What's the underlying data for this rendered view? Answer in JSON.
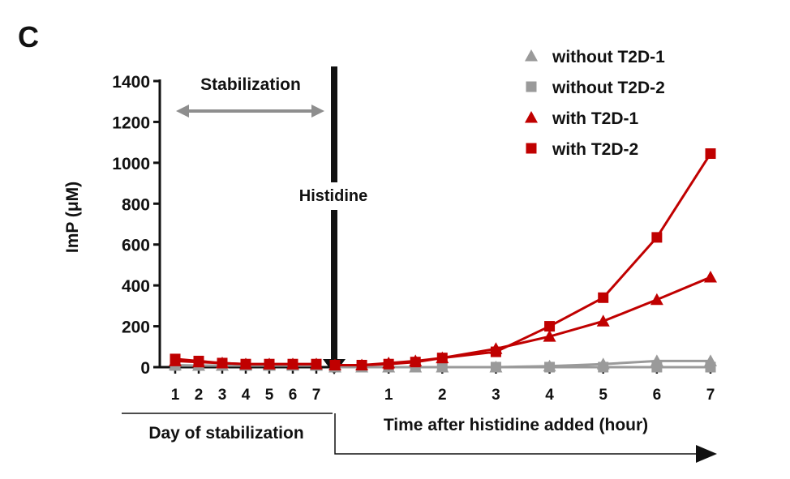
{
  "panel_label": "C",
  "chart_data": {
    "type": "line",
    "title": "",
    "ylabel": "ImP (μM)",
    "ylim": [
      0,
      1400
    ],
    "yticks": [
      "0",
      "200",
      "400",
      "600",
      "800",
      "1000",
      "1200",
      "1400"
    ],
    "stabilization": {
      "label": "Stabilization",
      "xlabel": "Day of stabilization",
      "days": [
        "1",
        "2",
        "3",
        "4",
        "5",
        "6",
        "7"
      ]
    },
    "histidine_label": "Histidine",
    "time": {
      "xlabel": "Time after histidine added (hour)",
      "ticks": [
        "1",
        "2",
        "3",
        "4",
        "5",
        "6",
        "7"
      ],
      "xlim": [
        0,
        7
      ]
    },
    "legend": {
      "position": "top-right",
      "entries": [
        {
          "label": "without T2D-1",
          "marker": "triangle",
          "color": "#9a9a9a"
        },
        {
          "label": "without T2D-2",
          "marker": "square",
          "color": "#9a9a9a"
        },
        {
          "label": "with T2D-1",
          "marker": "triangle",
          "color": "#c00000"
        },
        {
          "label": "with T2D-2",
          "marker": "square",
          "color": "#c00000"
        }
      ]
    },
    "series": [
      {
        "name": "without T2D-1",
        "marker": "triangle",
        "color": "#9a9a9a",
        "stabilization_values": [
          10,
          8,
          8,
          8,
          8,
          8,
          8
        ],
        "time_x": [
          0,
          0.5,
          1,
          1.5,
          2,
          3,
          4,
          5,
          6,
          7
        ],
        "time_values": [
          0,
          0,
          0,
          0,
          0,
          0,
          5,
          15,
          30,
          30
        ]
      },
      {
        "name": "without T2D-2",
        "marker": "square",
        "color": "#9a9a9a",
        "stabilization_values": [
          8,
          8,
          8,
          8,
          8,
          8,
          8
        ],
        "time_x": [
          0,
          0.5,
          1,
          1.5,
          2,
          3,
          4,
          5,
          6,
          7
        ],
        "time_values": [
          0,
          0,
          0,
          0,
          0,
          0,
          0,
          0,
          0,
          0
        ]
      },
      {
        "name": "with T2D-1",
        "marker": "triangle",
        "color": "#c00000",
        "stabilization_values": [
          30,
          25,
          20,
          15,
          15,
          15,
          15
        ],
        "time_x": [
          0,
          0.5,
          1,
          1.5,
          2,
          3,
          4,
          5,
          6,
          7
        ],
        "time_values": [
          10,
          10,
          20,
          30,
          45,
          90,
          150,
          225,
          330,
          440
        ]
      },
      {
        "name": "with T2D-2",
        "marker": "square",
        "color": "#c00000",
        "stabilization_values": [
          40,
          30,
          20,
          15,
          15,
          15,
          15
        ],
        "time_x": [
          0,
          0.5,
          1,
          1.5,
          2,
          3,
          4,
          5,
          6,
          7
        ],
        "time_values": [
          10,
          10,
          15,
          25,
          45,
          75,
          200,
          340,
          635,
          1045
        ]
      }
    ]
  }
}
